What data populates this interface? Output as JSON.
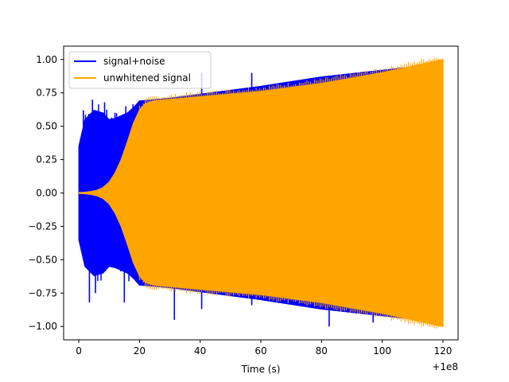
{
  "chart_data": {
    "type": "line",
    "title": "",
    "xlabel": "Time (s)",
    "ylabel": "",
    "x_offset_text": "+1e8",
    "xlim": [
      -5,
      125
    ],
    "ylim": [
      -1.1,
      1.1
    ],
    "x_ticks": [
      0,
      20,
      40,
      60,
      80,
      100,
      120
    ],
    "y_ticks": [
      -1.0,
      -0.75,
      -0.5,
      -0.25,
      0.0,
      0.25,
      0.5,
      0.75,
      1.0
    ],
    "x_tick_labels": [
      "0",
      "20",
      "40",
      "60",
      "80",
      "100",
      "120"
    ],
    "y_tick_labels": [
      "−1.00",
      "−0.75",
      "−0.50",
      "−0.25",
      "0.00",
      "0.25",
      "0.50",
      "0.75",
      "1.00"
    ],
    "grid": false,
    "legend_position": "top-left",
    "series": [
      {
        "name": "signal+noise",
        "color": "#0000ff",
        "envelope": {
          "t": [
            0,
            2,
            5,
            8,
            10,
            12,
            14,
            16,
            18,
            20,
            30,
            40,
            60,
            80,
            100,
            120
          ],
          "amp": [
            0.35,
            0.55,
            0.62,
            0.6,
            0.55,
            0.56,
            0.58,
            0.6,
            0.64,
            0.69,
            0.71,
            0.74,
            0.8,
            0.87,
            0.92,
            0.97
          ]
        },
        "spikes": [
          {
            "t": 1.5,
            "v": 0.62
          },
          {
            "t": 4.5,
            "v": 0.7
          },
          {
            "t": 8.5,
            "v": 0.68
          },
          {
            "t": 15.5,
            "v": 0.65
          },
          {
            "t": 40.5,
            "v": 0.9
          },
          {
            "t": 57,
            "v": 0.9
          },
          {
            "t": 88,
            "v": 0.87
          },
          {
            "t": 3.5,
            "v": -0.82
          },
          {
            "t": 5.5,
            "v": -0.75
          },
          {
            "t": 15,
            "v": -0.82
          },
          {
            "t": 31.5,
            "v": -0.95
          },
          {
            "t": 40.5,
            "v": -0.87
          },
          {
            "t": 57,
            "v": -0.84
          },
          {
            "t": 82.5,
            "v": -1.0
          },
          {
            "t": 97,
            "v": -0.97
          }
        ]
      },
      {
        "name": "unwhitened signal",
        "color": "#ffa500",
        "envelope": {
          "t": [
            0,
            2,
            4,
            6,
            8,
            10,
            12,
            14,
            16,
            18,
            20,
            22,
            25,
            30,
            40,
            60,
            80,
            100,
            120
          ],
          "amp": [
            0.0,
            0.005,
            0.01,
            0.02,
            0.04,
            0.08,
            0.15,
            0.25,
            0.38,
            0.52,
            0.62,
            0.67,
            0.69,
            0.7,
            0.72,
            0.76,
            0.82,
            0.9,
            1.0
          ]
        }
      }
    ]
  }
}
